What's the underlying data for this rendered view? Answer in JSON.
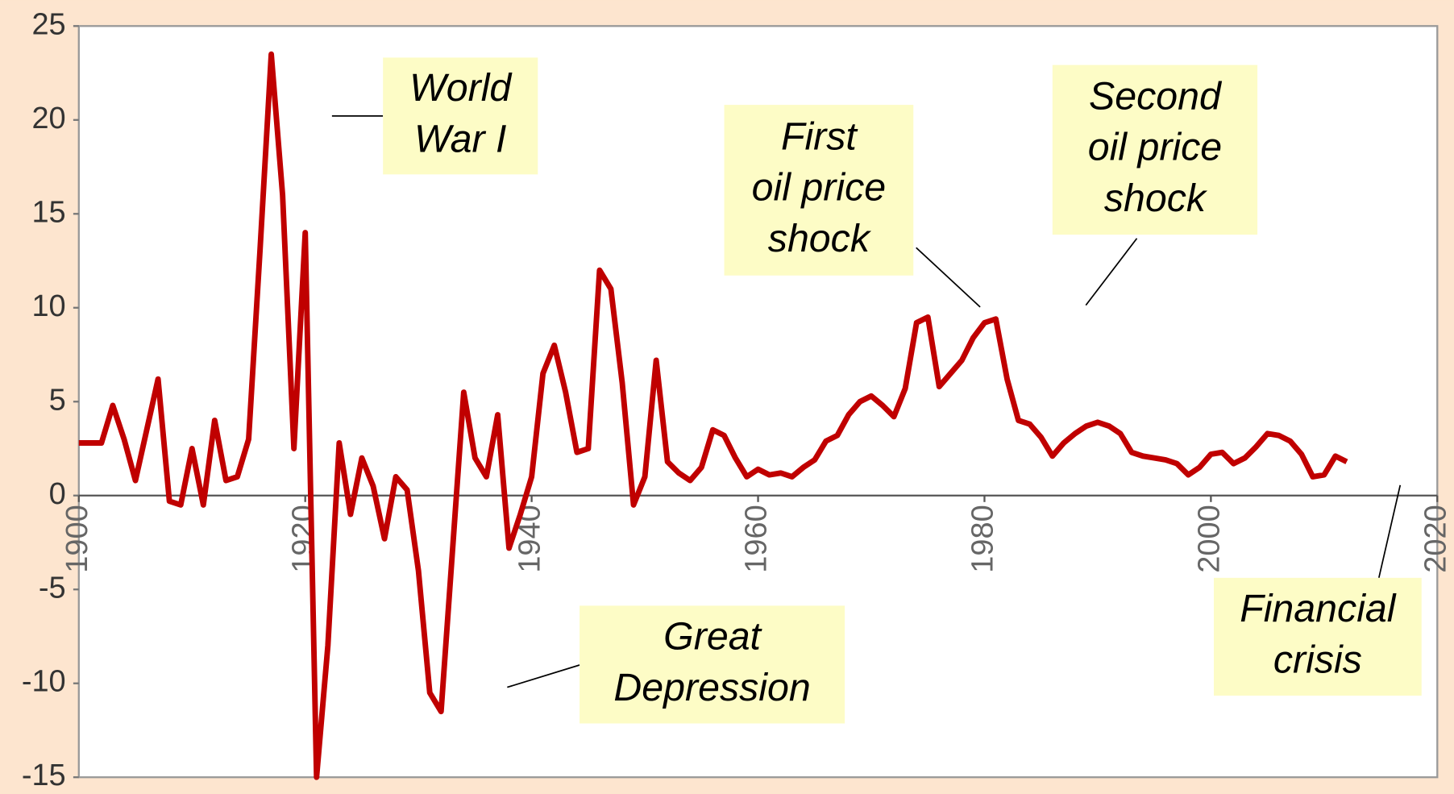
{
  "chart_data": {
    "type": "line",
    "x": [
      1900,
      1901,
      1902,
      1903,
      1904,
      1905,
      1906,
      1907,
      1908,
      1909,
      1910,
      1911,
      1912,
      1913,
      1914,
      1915,
      1916,
      1917,
      1918,
      1919,
      1920,
      1921,
      1922,
      1923,
      1924,
      1925,
      1926,
      1927,
      1928,
      1929,
      1930,
      1931,
      1932,
      1933,
      1934,
      1935,
      1936,
      1937,
      1938,
      1939,
      1940,
      1941,
      1942,
      1943,
      1944,
      1945,
      1946,
      1947,
      1948,
      1949,
      1950,
      1951,
      1952,
      1953,
      1954,
      1955,
      1956,
      1957,
      1958,
      1959,
      1960,
      1961,
      1962,
      1963,
      1964,
      1965,
      1966,
      1967,
      1968,
      1969,
      1970,
      1971,
      1972,
      1973,
      1974,
      1975,
      1976,
      1977,
      1978,
      1979,
      1980,
      1981,
      1982,
      1983,
      1984,
      1985,
      1986,
      1987,
      1988,
      1989,
      1990,
      1991,
      1992,
      1993,
      1994,
      1995,
      1996,
      1997,
      1998,
      1999,
      2000,
      2001,
      2002,
      2003,
      2004,
      2005,
      2006,
      2007,
      2008,
      2009,
      2010,
      2011,
      2012
    ],
    "values": [
      2.8,
      2.8,
      2.8,
      4.8,
      3,
      0.8,
      3.5,
      6.2,
      -0.3,
      -0.5,
      2.5,
      -0.5,
      4,
      0.8,
      1,
      3,
      13,
      23.5,
      16,
      2.5,
      14,
      -15,
      -8,
      2.8,
      -1,
      2,
      0.5,
      -2.3,
      1,
      0.3,
      -4,
      -10.5,
      -11.5,
      -3,
      5.5,
      2,
      1,
      4.3,
      -2.8,
      -1,
      1,
      6.5,
      8,
      5.5,
      2.3,
      2.5,
      12,
      11,
      6,
      -0.5,
      1,
      7.2,
      1.8,
      1.2,
      0.8,
      1.5,
      3.5,
      3.2,
      2,
      1,
      1.4,
      1.1,
      1.2,
      1,
      1.5,
      1.9,
      2.9,
      3.2,
      4.3,
      5,
      5.3,
      4.8,
      4.2,
      5.7,
      9.2,
      9.5,
      5.8,
      6.5,
      7.2,
      8.4,
      9.2,
      9.4,
      6.2,
      4,
      3.8,
      3.1,
      2.1,
      2.8,
      3.3,
      3.7,
      3.9,
      3.7,
      3.3,
      2.3,
      2.1,
      2,
      1.9,
      1.7,
      1.1,
      1.5,
      2.2,
      2.3,
      1.7,
      2,
      2.6,
      3.3,
      3.2,
      2.9,
      2.2,
      1,
      1.1,
      2.1,
      1.8
    ],
    "color": "#c00000",
    "xlim": [
      1900,
      2020
    ],
    "xticks": [
      1900,
      1920,
      1940,
      1960,
      1980,
      2000,
      2020
    ],
    "ylim": [
      -15,
      25
    ],
    "yticks": [
      -15,
      -10,
      -5,
      0,
      5,
      10,
      15,
      20,
      25
    ],
    "annotations": [
      {
        "lines": [
          "World",
          "War I"
        ]
      },
      {
        "lines": [
          "First",
          "oil price",
          "shock"
        ]
      },
      {
        "lines": [
          "Second",
          "oil price",
          "shock"
        ]
      },
      {
        "lines": [
          "Great",
          "Depression"
        ]
      },
      {
        "lines": [
          "Financial",
          "crisis"
        ]
      }
    ]
  }
}
